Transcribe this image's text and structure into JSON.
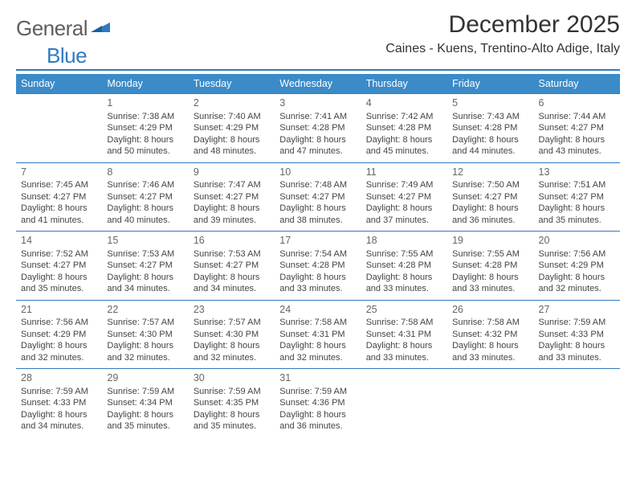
{
  "brand": {
    "part1": "General",
    "part2": "Blue"
  },
  "title": "December 2025",
  "location": "Caines - Kuens, Trentino-Alto Adige, Italy",
  "colors": {
    "header_bg": "#3b8bc8",
    "accent": "#2f7bbf",
    "text": "#333333",
    "muted": "#666666",
    "bg": "#ffffff"
  },
  "day_headers": [
    "Sunday",
    "Monday",
    "Tuesday",
    "Wednesday",
    "Thursday",
    "Friday",
    "Saturday"
  ],
  "weeks": [
    [
      {
        "n": "",
        "sr": "",
        "ss": "",
        "dl": ""
      },
      {
        "n": "1",
        "sr": "7:38 AM",
        "ss": "4:29 PM",
        "dl": "8 hours and 50 minutes."
      },
      {
        "n": "2",
        "sr": "7:40 AM",
        "ss": "4:29 PM",
        "dl": "8 hours and 48 minutes."
      },
      {
        "n": "3",
        "sr": "7:41 AM",
        "ss": "4:28 PM",
        "dl": "8 hours and 47 minutes."
      },
      {
        "n": "4",
        "sr": "7:42 AM",
        "ss": "4:28 PM",
        "dl": "8 hours and 45 minutes."
      },
      {
        "n": "5",
        "sr": "7:43 AM",
        "ss": "4:28 PM",
        "dl": "8 hours and 44 minutes."
      },
      {
        "n": "6",
        "sr": "7:44 AM",
        "ss": "4:27 PM",
        "dl": "8 hours and 43 minutes."
      }
    ],
    [
      {
        "n": "7",
        "sr": "7:45 AM",
        "ss": "4:27 PM",
        "dl": "8 hours and 41 minutes."
      },
      {
        "n": "8",
        "sr": "7:46 AM",
        "ss": "4:27 PM",
        "dl": "8 hours and 40 minutes."
      },
      {
        "n": "9",
        "sr": "7:47 AM",
        "ss": "4:27 PM",
        "dl": "8 hours and 39 minutes."
      },
      {
        "n": "10",
        "sr": "7:48 AM",
        "ss": "4:27 PM",
        "dl": "8 hours and 38 minutes."
      },
      {
        "n": "11",
        "sr": "7:49 AM",
        "ss": "4:27 PM",
        "dl": "8 hours and 37 minutes."
      },
      {
        "n": "12",
        "sr": "7:50 AM",
        "ss": "4:27 PM",
        "dl": "8 hours and 36 minutes."
      },
      {
        "n": "13",
        "sr": "7:51 AM",
        "ss": "4:27 PM",
        "dl": "8 hours and 35 minutes."
      }
    ],
    [
      {
        "n": "14",
        "sr": "7:52 AM",
        "ss": "4:27 PM",
        "dl": "8 hours and 35 minutes."
      },
      {
        "n": "15",
        "sr": "7:53 AM",
        "ss": "4:27 PM",
        "dl": "8 hours and 34 minutes."
      },
      {
        "n": "16",
        "sr": "7:53 AM",
        "ss": "4:27 PM",
        "dl": "8 hours and 34 minutes."
      },
      {
        "n": "17",
        "sr": "7:54 AM",
        "ss": "4:28 PM",
        "dl": "8 hours and 33 minutes."
      },
      {
        "n": "18",
        "sr": "7:55 AM",
        "ss": "4:28 PM",
        "dl": "8 hours and 33 minutes."
      },
      {
        "n": "19",
        "sr": "7:55 AM",
        "ss": "4:28 PM",
        "dl": "8 hours and 33 minutes."
      },
      {
        "n": "20",
        "sr": "7:56 AM",
        "ss": "4:29 PM",
        "dl": "8 hours and 32 minutes."
      }
    ],
    [
      {
        "n": "21",
        "sr": "7:56 AM",
        "ss": "4:29 PM",
        "dl": "8 hours and 32 minutes."
      },
      {
        "n": "22",
        "sr": "7:57 AM",
        "ss": "4:30 PM",
        "dl": "8 hours and 32 minutes."
      },
      {
        "n": "23",
        "sr": "7:57 AM",
        "ss": "4:30 PM",
        "dl": "8 hours and 32 minutes."
      },
      {
        "n": "24",
        "sr": "7:58 AM",
        "ss": "4:31 PM",
        "dl": "8 hours and 32 minutes."
      },
      {
        "n": "25",
        "sr": "7:58 AM",
        "ss": "4:31 PM",
        "dl": "8 hours and 33 minutes."
      },
      {
        "n": "26",
        "sr": "7:58 AM",
        "ss": "4:32 PM",
        "dl": "8 hours and 33 minutes."
      },
      {
        "n": "27",
        "sr": "7:59 AM",
        "ss": "4:33 PM",
        "dl": "8 hours and 33 minutes."
      }
    ],
    [
      {
        "n": "28",
        "sr": "7:59 AM",
        "ss": "4:33 PM",
        "dl": "8 hours and 34 minutes."
      },
      {
        "n": "29",
        "sr": "7:59 AM",
        "ss": "4:34 PM",
        "dl": "8 hours and 35 minutes."
      },
      {
        "n": "30",
        "sr": "7:59 AM",
        "ss": "4:35 PM",
        "dl": "8 hours and 35 minutes."
      },
      {
        "n": "31",
        "sr": "7:59 AM",
        "ss": "4:36 PM",
        "dl": "8 hours and 36 minutes."
      },
      {
        "n": "",
        "sr": "",
        "ss": "",
        "dl": ""
      },
      {
        "n": "",
        "sr": "",
        "ss": "",
        "dl": ""
      },
      {
        "n": "",
        "sr": "",
        "ss": "",
        "dl": ""
      }
    ]
  ],
  "labels": {
    "sunrise": "Sunrise:",
    "sunset": "Sunset:",
    "daylight": "Daylight:"
  }
}
